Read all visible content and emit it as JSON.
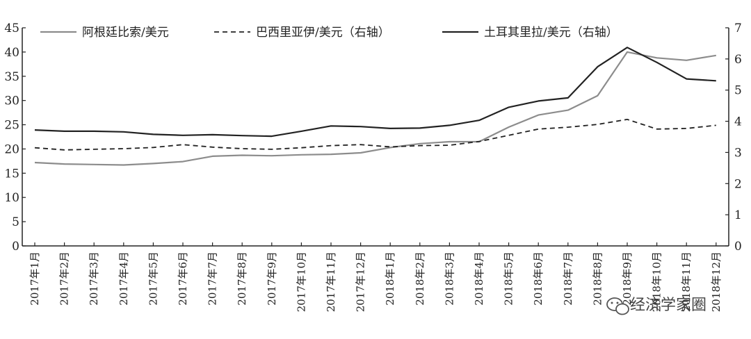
{
  "chart_data": {
    "type": "line",
    "categories": [
      "2017年1月",
      "2017年2月",
      "2017年3月",
      "2017年4月",
      "2017年5月",
      "2017年6月",
      "2017年7月",
      "2017年8月",
      "2017年9月",
      "2017年10月",
      "2017年11月",
      "2017年12月",
      "2018年1月",
      "2018年2月",
      "2018年3月",
      "2018年4月",
      "2018年5月",
      "2018年6月",
      "2018年7月",
      "2018年8月",
      "2018年9月",
      "2018年10月",
      "2018年11月",
      "2018年12月"
    ],
    "series": [
      {
        "name": "阿根廷比索/美元",
        "axis": "left",
        "style": "solid",
        "color": "#8c8c8c",
        "values": [
          17.2,
          16.9,
          16.8,
          16.7,
          17.0,
          17.4,
          18.5,
          18.7,
          18.6,
          18.8,
          18.9,
          19.2,
          20.3,
          21.1,
          21.5,
          21.5,
          24.5,
          27.0,
          28.0,
          31.0,
          40.0,
          38.8,
          38.3,
          39.3
        ]
      },
      {
        "name": "巴西里亚伊/美元（右轴）",
        "axis": "right",
        "style": "dashed",
        "color": "#222222",
        "values": [
          3.15,
          3.08,
          3.1,
          3.12,
          3.16,
          3.25,
          3.17,
          3.12,
          3.1,
          3.15,
          3.22,
          3.25,
          3.18,
          3.22,
          3.23,
          3.35,
          3.55,
          3.75,
          3.81,
          3.9,
          4.06,
          3.75,
          3.77,
          3.87
        ]
      },
      {
        "name": "土耳其里拉/美元（右轴）",
        "axis": "right",
        "style": "solid",
        "color": "#222222",
        "values": [
          3.72,
          3.68,
          3.68,
          3.66,
          3.58,
          3.55,
          3.57,
          3.54,
          3.52,
          3.68,
          3.85,
          3.83,
          3.77,
          3.78,
          3.87,
          4.03,
          4.45,
          4.65,
          4.75,
          5.75,
          6.37,
          5.89,
          5.36,
          5.3
        ]
      }
    ],
    "y_left": {
      "min": 0,
      "max": 45,
      "ticks": [
        "0",
        "5",
        "10",
        "15",
        "20",
        "25",
        "30",
        "35",
        "40",
        "45"
      ]
    },
    "y_right": {
      "min": 0,
      "max": 7,
      "ticks": [
        "0",
        "1",
        "2",
        "3",
        "4",
        "5",
        "6",
        "7"
      ]
    },
    "title": "",
    "xlabel": "",
    "ylabel": "",
    "grid": false,
    "legend_position": "top"
  },
  "watermark": {
    "text": "经济学家圈",
    "icon": "wechat-icon"
  }
}
